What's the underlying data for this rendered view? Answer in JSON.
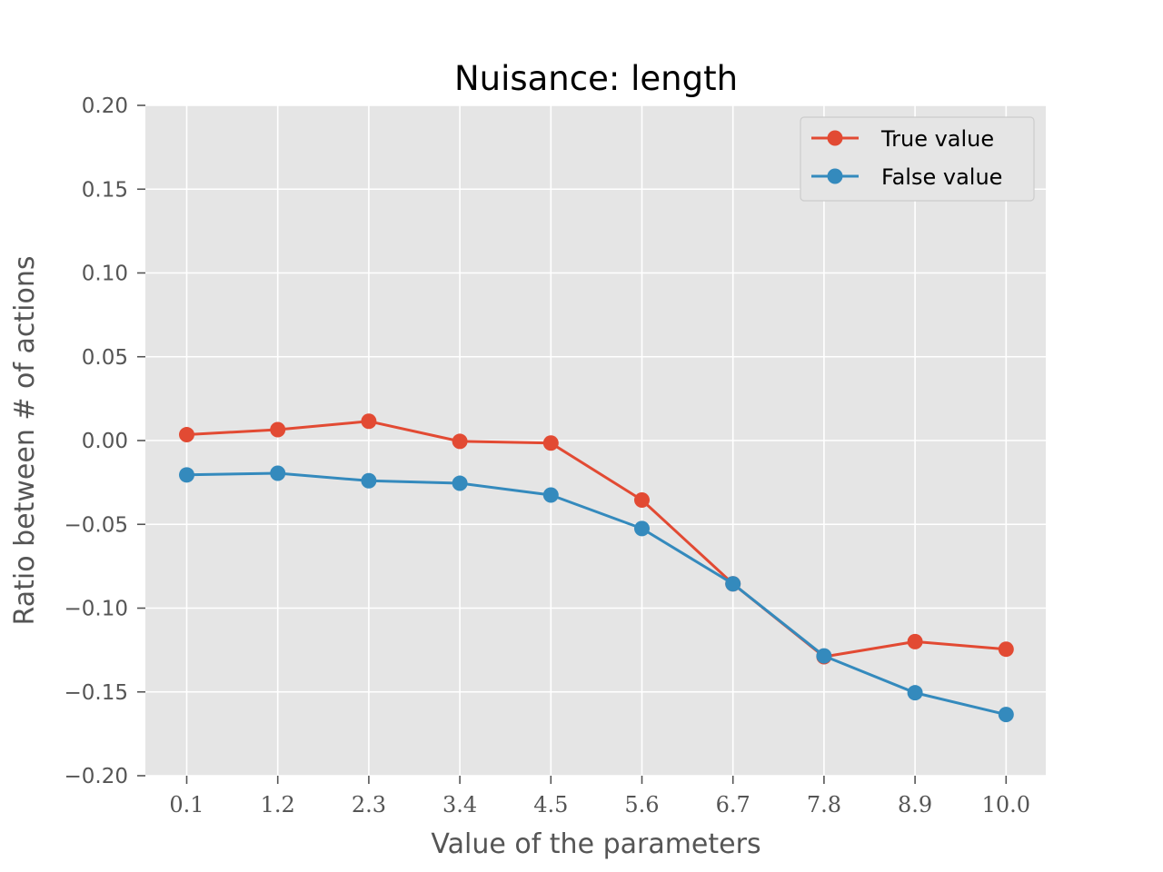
{
  "chart_data": {
    "type": "line",
    "title": "Nuisance: length",
    "xlabel": "Value of the parameters",
    "ylabel": "Ratio between # of actions",
    "categories": [
      "0.1",
      "1.2",
      "2.3",
      "3.4",
      "4.5",
      "5.6",
      "6.7",
      "7.8",
      "8.9",
      "10.0"
    ],
    "ylim": [
      -0.2,
      0.2
    ],
    "yticks": [
      "0.20",
      "0.15",
      "0.10",
      "0.05",
      "0.00",
      "−0.05",
      "−0.10",
      "−0.15",
      "−0.20"
    ],
    "ytick_values": [
      0.2,
      0.15,
      0.1,
      0.05,
      0.0,
      -0.05,
      -0.1,
      -0.15,
      -0.2
    ],
    "grid": true,
    "legend_position": "top-right",
    "series": [
      {
        "name": "True value",
        "color": "#e24a33",
        "marker": "circle",
        "values": [
          0.0035,
          0.0065,
          0.0115,
          -0.0005,
          -0.0015,
          -0.0355,
          -0.0855,
          -0.129,
          -0.12,
          -0.1245
        ]
      },
      {
        "name": "False value",
        "color": "#348abd",
        "marker": "circle",
        "values": [
          -0.0205,
          -0.0195,
          -0.024,
          -0.0255,
          -0.0325,
          -0.0525,
          -0.0855,
          -0.1285,
          -0.1505,
          -0.1635
        ]
      }
    ]
  }
}
